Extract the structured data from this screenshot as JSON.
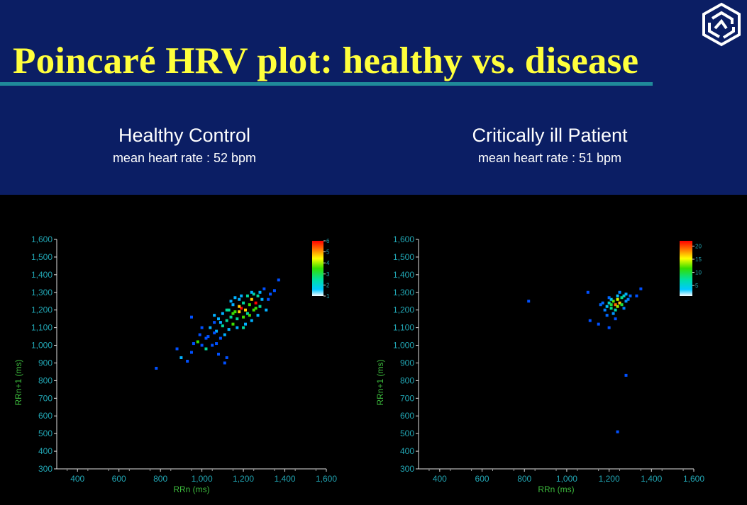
{
  "slide": {
    "title": "Poincaré HRV plot: healthy vs. disease",
    "logo_icon": "hexagon-swirl-logo-icon"
  },
  "colors": {
    "background": "#0b1e64",
    "title": "#ffff3c",
    "rule": "#1f8a9a",
    "axis_text": "#21a6b4",
    "axis_title": "#3dbb3d"
  },
  "panels": [
    {
      "title": "Healthy Control",
      "subtitle": "mean heart rate : 52 bpm"
    },
    {
      "title": "Critically ill Patient",
      "subtitle": "mean heart rate : 51 bpm"
    }
  ],
  "chart_data": [
    {
      "type": "scatter",
      "xlabel": "RRn (ms)",
      "ylabel": "RRn+1 (ms)",
      "xlim": [
        300,
        1600
      ],
      "ylim": [
        300,
        1600
      ],
      "xticks": [
        "400",
        "600",
        "800",
        "1,000",
        "1,200",
        "1,400",
        "1,600"
      ],
      "yticks": [
        "1,600",
        "1,500",
        "1,400",
        "1,300",
        "1,200",
        "1,100",
        "1,000",
        "900",
        "800",
        "700",
        "600",
        "500",
        "400",
        "300"
      ],
      "colorbar": {
        "ticks": [
          "6",
          "5",
          "4",
          "3",
          "2",
          "1"
        ],
        "range": [
          1,
          6
        ]
      },
      "points": [
        [
          780,
          870,
          1
        ],
        [
          880,
          980,
          1
        ],
        [
          900,
          930,
          2
        ],
        [
          930,
          910,
          1
        ],
        [
          950,
          960,
          1
        ],
        [
          960,
          1010,
          1
        ],
        [
          980,
          1020,
          4
        ],
        [
          990,
          1060,
          1
        ],
        [
          1000,
          1000,
          1
        ],
        [
          1020,
          980,
          3
        ],
        [
          1030,
          1050,
          1
        ],
        [
          1040,
          1100,
          2
        ],
        [
          1050,
          1000,
          1
        ],
        [
          1060,
          1130,
          1
        ],
        [
          1070,
          1080,
          2
        ],
        [
          1080,
          1150,
          2
        ],
        [
          1090,
          1040,
          1
        ],
        [
          1100,
          1110,
          3
        ],
        [
          1100,
          1180,
          2
        ],
        [
          1110,
          900,
          1
        ],
        [
          1120,
          930,
          1
        ],
        [
          1120,
          1200,
          3
        ],
        [
          1130,
          1090,
          2
        ],
        [
          1140,
          1160,
          3
        ],
        [
          1150,
          1230,
          2
        ],
        [
          1150,
          1120,
          4
        ],
        [
          1160,
          1190,
          4
        ],
        [
          1170,
          1150,
          3
        ],
        [
          1180,
          1260,
          2
        ],
        [
          1180,
          1190,
          5
        ],
        [
          1190,
          1210,
          6
        ],
        [
          1200,
          1160,
          4
        ],
        [
          1200,
          1240,
          3
        ],
        [
          1210,
          1120,
          2
        ],
        [
          1210,
          1200,
          5
        ],
        [
          1220,
          1180,
          3
        ],
        [
          1220,
          1280,
          3
        ],
        [
          1230,
          1230,
          4
        ],
        [
          1240,
          1140,
          2
        ],
        [
          1240,
          1260,
          5
        ],
        [
          1250,
          1200,
          4
        ],
        [
          1250,
          1290,
          3
        ],
        [
          1260,
          1240,
          6
        ],
        [
          1270,
          1170,
          2
        ],
        [
          1270,
          1280,
          3
        ],
        [
          1280,
          1220,
          3
        ],
        [
          1290,
          1260,
          2
        ],
        [
          1300,
          1320,
          1
        ],
        [
          1310,
          1200,
          2
        ],
        [
          1320,
          1260,
          1
        ],
        [
          1330,
          1290,
          1
        ],
        [
          1350,
          1310,
          1
        ],
        [
          1370,
          1370,
          1
        ],
        [
          1060,
          1070,
          1
        ],
        [
          1090,
          1130,
          2
        ],
        [
          1130,
          1200,
          3
        ],
        [
          1170,
          1100,
          2
        ],
        [
          1190,
          1280,
          2
        ],
        [
          1110,
          1060,
          2
        ],
        [
          1140,
          1250,
          2
        ],
        [
          1020,
          1040,
          1
        ],
        [
          1000,
          1100,
          1
        ],
        [
          950,
          1160,
          1
        ],
        [
          1080,
          950,
          1
        ],
        [
          1280,
          1300,
          2
        ],
        [
          1160,
          1270,
          2
        ],
        [
          1060,
          1170,
          2
        ],
        [
          1200,
          1100,
          3
        ],
        [
          1230,
          1170,
          4
        ],
        [
          1150,
          1180,
          4
        ],
        [
          1180,
          1220,
          5
        ],
        [
          1120,
          1140,
          3
        ],
        [
          1260,
          1210,
          4
        ],
        [
          1240,
          1300,
          2
        ],
        [
          1070,
          1010,
          1
        ]
      ]
    },
    {
      "type": "scatter",
      "xlabel": "RRn (ms)",
      "ylabel": "RRn+1 (ms)",
      "xlim": [
        300,
        1600
      ],
      "ylim": [
        300,
        1600
      ],
      "xticks": [
        "400",
        "600",
        "800",
        "1,000",
        "1,200",
        "1,400",
        "1,600"
      ],
      "yticks": [
        "1,600",
        "1,500",
        "1,400",
        "1,300",
        "1,200",
        "1,100",
        "1,000",
        "900",
        "800",
        "700",
        "600",
        "500",
        "400",
        "300"
      ],
      "colorbar": {
        "ticks": [
          "20",
          "15",
          "10",
          "5"
        ],
        "range": [
          1,
          22
        ]
      },
      "points": [
        [
          820,
          1250,
          1
        ],
        [
          1110,
          1140,
          1
        ],
        [
          1100,
          1300,
          1
        ],
        [
          1150,
          1120,
          1
        ],
        [
          1200,
          1100,
          1
        ],
        [
          1180,
          1200,
          3
        ],
        [
          1190,
          1220,
          6
        ],
        [
          1200,
          1240,
          8
        ],
        [
          1210,
          1210,
          10
        ],
        [
          1220,
          1250,
          14
        ],
        [
          1230,
          1230,
          20
        ],
        [
          1240,
          1260,
          16
        ],
        [
          1250,
          1240,
          18
        ],
        [
          1260,
          1270,
          10
        ],
        [
          1270,
          1280,
          8
        ],
        [
          1280,
          1290,
          5
        ],
        [
          1290,
          1260,
          3
        ],
        [
          1300,
          1280,
          2
        ],
        [
          1210,
          1260,
          7
        ],
        [
          1230,
          1200,
          9
        ],
        [
          1240,
          1280,
          6
        ],
        [
          1260,
          1230,
          12
        ],
        [
          1220,
          1180,
          4
        ],
        [
          1250,
          1300,
          3
        ],
        [
          1200,
          1270,
          2
        ],
        [
          1170,
          1240,
          2
        ],
        [
          1190,
          1170,
          2
        ],
        [
          1280,
          1250,
          4
        ],
        [
          1350,
          1320,
          1
        ],
        [
          1330,
          1280,
          1
        ],
        [
          1230,
          1150,
          1
        ],
        [
          1280,
          830,
          1
        ],
        [
          1240,
          510,
          1
        ],
        [
          1160,
          1230,
          2
        ],
        [
          1270,
          1210,
          3
        ],
        [
          1210,
          1230,
          12
        ],
        [
          1240,
          1220,
          15
        ]
      ]
    }
  ]
}
